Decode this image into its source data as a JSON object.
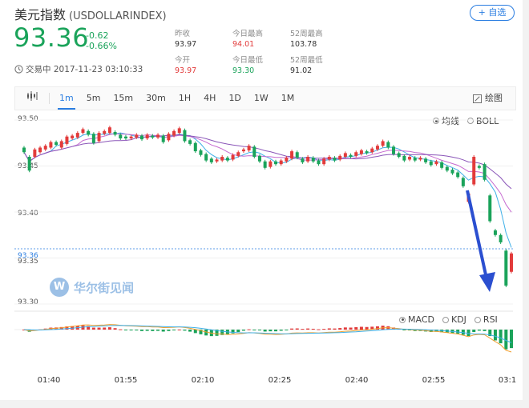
{
  "header": {
    "title": "美元指数",
    "symbol": "(USDOLLARINDEX)",
    "add_button": "+ 自选"
  },
  "quote": {
    "price": "93.36",
    "change": "-0.62",
    "change_pct": "-0.66%"
  },
  "stats": {
    "prev_close": {
      "label": "昨收",
      "value": "93.97"
    },
    "open": {
      "label": "今开",
      "value": "93.97"
    },
    "day_high": {
      "label": "今日最高",
      "value": "94.01"
    },
    "day_low": {
      "label": "今日最低",
      "value": "93.30"
    },
    "week52_high": {
      "label": "52周最高",
      "value": "103.78"
    },
    "week52_low": {
      "label": "52周最低",
      "value": "91.02"
    }
  },
  "status": {
    "text": "交易中 2017-11-23 03:10:33"
  },
  "toolbar": {
    "tabs": [
      "1m",
      "5m",
      "15m",
      "30m",
      "1H",
      "4H",
      "1D",
      "1W",
      "1M"
    ],
    "active_tab": "1m",
    "draw_label": "绘图"
  },
  "chart_options": {
    "overlays": [
      {
        "label": "均线",
        "selected": true
      },
      {
        "label": "BOLL",
        "selected": false
      }
    ],
    "indicators": [
      {
        "label": "MACD",
        "selected": true
      },
      {
        "label": "KDJ",
        "selected": false
      },
      {
        "label": "RSI",
        "selected": false
      }
    ]
  },
  "watermark": "华尔街见闻",
  "colors": {
    "up": "#e23b3b",
    "down": "#1aa35a",
    "accent": "#2a7de1",
    "annotation_arrow": "#2b4fd0"
  },
  "chart_data": {
    "type": "candlestick",
    "y_ticks": [
      "93.50",
      "93.45",
      "93.40",
      "93.35",
      "93.30"
    ],
    "current_price_label": "93.36",
    "ylim": [
      93.28,
      93.51
    ],
    "x_ticks": [
      "01:40",
      "01:55",
      "02:10",
      "02:25",
      "02:40",
      "02:55",
      "03:1"
    ],
    "candles": [
      {
        "o": 93.47,
        "c": 93.465
      },
      {
        "o": 93.46,
        "c": 93.445
      },
      {
        "o": 93.46,
        "c": 93.468
      },
      {
        "o": 93.465,
        "c": 93.47
      },
      {
        "o": 93.468,
        "c": 93.472
      },
      {
        "o": 93.47,
        "c": 93.476
      },
      {
        "o": 93.476,
        "c": 93.473
      },
      {
        "o": 93.47,
        "c": 93.477
      },
      {
        "o": 93.474,
        "c": 93.482
      },
      {
        "o": 93.48,
        "c": 93.483
      },
      {
        "o": 93.481,
        "c": 93.486
      },
      {
        "o": 93.486,
        "c": 93.49
      },
      {
        "o": 93.488,
        "c": 93.484
      },
      {
        "o": 93.485,
        "c": 93.475
      },
      {
        "o": 93.477,
        "c": 93.486
      },
      {
        "o": 93.485,
        "c": 93.488
      },
      {
        "o": 93.486,
        "c": 93.492
      },
      {
        "o": 93.487,
        "c": 93.484
      },
      {
        "o": 93.484,
        "c": 93.48
      },
      {
        "o": 93.482,
        "c": 93.48
      },
      {
        "o": 93.48,
        "c": 93.482
      },
      {
        "o": 93.481,
        "c": 93.484
      },
      {
        "o": 93.483,
        "c": 93.479
      },
      {
        "o": 93.48,
        "c": 93.484
      },
      {
        "o": 93.483,
        "c": 93.481
      },
      {
        "o": 93.481,
        "c": 93.484
      },
      {
        "o": 93.483,
        "c": 93.476
      },
      {
        "o": 93.478,
        "c": 93.485
      },
      {
        "o": 93.483,
        "c": 93.488
      },
      {
        "o": 93.486,
        "c": 93.491
      },
      {
        "o": 93.489,
        "c": 93.477
      },
      {
        "o": 93.478,
        "c": 93.474
      },
      {
        "o": 93.475,
        "c": 93.466
      },
      {
        "o": 93.467,
        "c": 93.462
      },
      {
        "o": 93.463,
        "c": 93.456
      },
      {
        "o": 93.458,
        "c": 93.454
      },
      {
        "o": 93.455,
        "c": 93.457
      },
      {
        "o": 93.456,
        "c": 93.46
      },
      {
        "o": 93.459,
        "c": 93.456
      },
      {
        "o": 93.457,
        "c": 93.462
      },
      {
        "o": 93.461,
        "c": 93.465
      },
      {
        "o": 93.466,
        "c": 93.468
      },
      {
        "o": 93.467,
        "c": 93.472
      },
      {
        "o": 93.471,
        "c": 93.46
      },
      {
        "o": 93.461,
        "c": 93.455
      },
      {
        "o": 93.455,
        "c": 93.448
      },
      {
        "o": 93.449,
        "c": 93.455
      },
      {
        "o": 93.455,
        "c": 93.452
      },
      {
        "o": 93.452,
        "c": 93.456
      },
      {
        "o": 93.455,
        "c": 93.459
      },
      {
        "o": 93.458,
        "c": 93.466
      },
      {
        "o": 93.465,
        "c": 93.459
      },
      {
        "o": 93.458,
        "c": 93.454
      },
      {
        "o": 93.455,
        "c": 93.46
      },
      {
        "o": 93.459,
        "c": 93.455
      },
      {
        "o": 93.456,
        "c": 93.452
      },
      {
        "o": 93.452,
        "c": 93.458
      },
      {
        "o": 93.457,
        "c": 93.46
      },
      {
        "o": 93.459,
        "c": 93.456
      },
      {
        "o": 93.457,
        "c": 93.461
      },
      {
        "o": 93.46,
        "c": 93.464
      },
      {
        "o": 93.462,
        "c": 93.46
      },
      {
        "o": 93.461,
        "c": 93.465
      },
      {
        "o": 93.463,
        "c": 93.467
      },
      {
        "o": 93.466,
        "c": 93.464
      },
      {
        "o": 93.465,
        "c": 93.469
      },
      {
        "o": 93.468,
        "c": 93.472
      },
      {
        "o": 93.472,
        "c": 93.477
      },
      {
        "o": 93.476,
        "c": 93.47
      },
      {
        "o": 93.471,
        "c": 93.463
      },
      {
        "o": 93.464,
        "c": 93.46
      },
      {
        "o": 93.461,
        "c": 93.456
      },
      {
        "o": 93.457,
        "c": 93.46
      },
      {
        "o": 93.459,
        "c": 93.456
      },
      {
        "o": 93.457,
        "c": 93.459
      },
      {
        "o": 93.458,
        "c": 93.454
      },
      {
        "o": 93.455,
        "c": 93.451
      },
      {
        "o": 93.452,
        "c": 93.455
      },
      {
        "o": 93.454,
        "c": 93.448
      },
      {
        "o": 93.449,
        "c": 93.445
      },
      {
        "o": 93.446,
        "c": 93.442
      },
      {
        "o": 93.443,
        "c": 93.438
      },
      {
        "o": 93.437,
        "c": 93.428
      },
      {
        "o": 93.411,
        "c": 93.42
      },
      {
        "o": 93.43,
        "c": 93.46
      },
      {
        "o": 93.45,
        "c": 93.448
      },
      {
        "o": 93.452,
        "c": 93.435
      },
      {
        "o": 93.418,
        "c": 93.39
      },
      {
        "o": 93.38,
        "c": 93.375
      },
      {
        "o": 93.375,
        "c": 93.367
      },
      {
        "o": 93.358,
        "c": 93.32
      },
      {
        "o": 93.335,
        "c": 93.355
      }
    ]
  }
}
